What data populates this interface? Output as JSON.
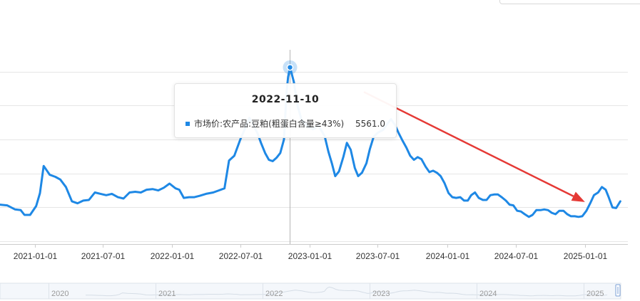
{
  "chart_data": {
    "type": "line",
    "series": [
      {
        "name": "市场价:农产品:豆粕(粗蛋白含量≥43%)",
        "color": "#1e88e5",
        "points": [
          [
            "2020-10-01",
            3540
          ],
          [
            "2020-10-20",
            3530
          ],
          [
            "2020-11-10",
            3470
          ],
          [
            "2020-11-25",
            3460
          ],
          [
            "2020-12-05",
            3390
          ],
          [
            "2020-12-20",
            3390
          ],
          [
            "2021-01-05",
            3520
          ],
          [
            "2021-01-15",
            3710
          ],
          [
            "2021-01-25",
            4110
          ],
          [
            "2021-02-10",
            3980
          ],
          [
            "2021-02-25",
            3950
          ],
          [
            "2021-03-10",
            3910
          ],
          [
            "2021-03-25",
            3800
          ],
          [
            "2021-04-10",
            3590
          ],
          [
            "2021-04-25",
            3560
          ],
          [
            "2021-05-10",
            3600
          ],
          [
            "2021-05-25",
            3610
          ],
          [
            "2021-06-10",
            3720
          ],
          [
            "2021-06-25",
            3700
          ],
          [
            "2021-07-10",
            3680
          ],
          [
            "2021-07-25",
            3700
          ],
          [
            "2021-08-10",
            3650
          ],
          [
            "2021-08-25",
            3630
          ],
          [
            "2021-09-10",
            3720
          ],
          [
            "2021-09-25",
            3730
          ],
          [
            "2021-10-10",
            3720
          ],
          [
            "2021-10-25",
            3760
          ],
          [
            "2021-11-10",
            3770
          ],
          [
            "2021-11-25",
            3750
          ],
          [
            "2021-12-10",
            3790
          ],
          [
            "2021-12-25",
            3850
          ],
          [
            "2022-01-10",
            3780
          ],
          [
            "2022-01-20",
            3760
          ],
          [
            "2022-02-01",
            3640
          ],
          [
            "2022-02-15",
            3650
          ],
          [
            "2022-03-01",
            3650
          ],
          [
            "2022-03-15",
            3670
          ],
          [
            "2022-04-01",
            3700
          ],
          [
            "2022-04-20",
            3720
          ],
          [
            "2022-05-05",
            3750
          ],
          [
            "2022-05-20",
            3780
          ],
          [
            "2022-06-01",
            4190
          ],
          [
            "2022-06-15",
            4260
          ],
          [
            "2022-07-01",
            4500
          ],
          [
            "2022-07-15",
            4680
          ],
          [
            "2022-07-25",
            4820
          ],
          [
            "2022-08-05",
            4700
          ],
          [
            "2022-08-15",
            4600
          ],
          [
            "2022-08-25",
            4450
          ],
          [
            "2022-09-05",
            4300
          ],
          [
            "2022-09-15",
            4200
          ],
          [
            "2022-09-25",
            4180
          ],
          [
            "2022-10-05",
            4230
          ],
          [
            "2022-10-15",
            4300
          ],
          [
            "2022-10-25",
            4500
          ],
          [
            "2022-11-01",
            5200
          ],
          [
            "2022-11-05",
            5420
          ],
          [
            "2022-11-10",
            5561
          ],
          [
            "2022-11-20",
            5350
          ],
          [
            "2022-11-30",
            5000
          ],
          [
            "2022-12-10",
            4800
          ],
          [
            "2022-12-25",
            4700
          ],
          [
            "2023-01-10",
            4650
          ],
          [
            "2023-01-25",
            4700
          ],
          [
            "2023-02-10",
            4550
          ],
          [
            "2023-02-20",
            4320
          ],
          [
            "2023-03-01",
            4150
          ],
          [
            "2023-03-10",
            3960
          ],
          [
            "2023-03-20",
            4030
          ],
          [
            "2023-04-01",
            4250
          ],
          [
            "2023-04-10",
            4450
          ],
          [
            "2023-04-20",
            4350
          ],
          [
            "2023-05-01",
            4080
          ],
          [
            "2023-05-10",
            3960
          ],
          [
            "2023-05-20",
            4010
          ],
          [
            "2023-06-01",
            4150
          ],
          [
            "2023-06-10",
            4360
          ],
          [
            "2023-06-20",
            4540
          ],
          [
            "2023-07-01",
            4600
          ],
          [
            "2023-07-15",
            4640
          ],
          [
            "2023-07-25",
            4720
          ],
          [
            "2023-08-05",
            4800
          ],
          [
            "2023-08-15",
            4720
          ],
          [
            "2023-08-25",
            4600
          ],
          [
            "2023-09-05",
            4480
          ],
          [
            "2023-09-15",
            4380
          ],
          [
            "2023-09-25",
            4260
          ],
          [
            "2023-10-05",
            4200
          ],
          [
            "2023-10-15",
            4240
          ],
          [
            "2023-10-25",
            4210
          ],
          [
            "2023-11-05",
            4100
          ],
          [
            "2023-11-15",
            4020
          ],
          [
            "2023-11-25",
            4040
          ],
          [
            "2023-12-05",
            4010
          ],
          [
            "2023-12-15",
            3960
          ],
          [
            "2023-12-25",
            3860
          ],
          [
            "2024-01-05",
            3710
          ],
          [
            "2024-01-15",
            3650
          ],
          [
            "2024-01-25",
            3640
          ],
          [
            "2024-02-05",
            3650
          ],
          [
            "2024-02-15",
            3600
          ],
          [
            "2024-02-25",
            3600
          ],
          [
            "2024-03-05",
            3680
          ],
          [
            "2024-03-15",
            3720
          ],
          [
            "2024-03-25",
            3640
          ],
          [
            "2024-04-05",
            3610
          ],
          [
            "2024-04-15",
            3610
          ],
          [
            "2024-04-25",
            3680
          ],
          [
            "2024-05-05",
            3690
          ],
          [
            "2024-05-15",
            3690
          ],
          [
            "2024-05-25",
            3650
          ],
          [
            "2024-06-05",
            3600
          ],
          [
            "2024-06-15",
            3540
          ],
          [
            "2024-06-25",
            3530
          ],
          [
            "2024-07-05",
            3450
          ],
          [
            "2024-07-15",
            3440
          ],
          [
            "2024-07-25",
            3400
          ],
          [
            "2024-08-05",
            3360
          ],
          [
            "2024-08-15",
            3390
          ],
          [
            "2024-08-25",
            3460
          ],
          [
            "2024-09-05",
            3460
          ],
          [
            "2024-09-15",
            3470
          ],
          [
            "2024-09-25",
            3460
          ],
          [
            "2024-10-05",
            3420
          ],
          [
            "2024-10-15",
            3400
          ],
          [
            "2024-10-25",
            3450
          ],
          [
            "2024-11-05",
            3450
          ],
          [
            "2024-11-15",
            3400
          ],
          [
            "2024-11-25",
            3370
          ],
          [
            "2024-12-05",
            3370
          ],
          [
            "2024-12-15",
            3360
          ],
          [
            "2024-12-25",
            3370
          ],
          [
            "2025-01-05",
            3450
          ],
          [
            "2025-01-15",
            3560
          ],
          [
            "2025-01-25",
            3680
          ],
          [
            "2025-02-05",
            3720
          ],
          [
            "2025-02-15",
            3800
          ],
          [
            "2025-02-25",
            3760
          ],
          [
            "2025-03-05",
            3650
          ],
          [
            "2025-03-15",
            3500
          ],
          [
            "2025-03-25",
            3490
          ],
          [
            "2025-04-05",
            3590
          ]
        ]
      }
    ],
    "x_ticks": [
      "2021-01-01",
      "2021-07-01",
      "2022-01-01",
      "2022-07-01",
      "2023-01-01",
      "2023-07-01",
      "2024-01-01",
      "2024-07-01",
      "2025-01-01"
    ],
    "y_gridlines": [
      3000,
      3500,
      4000,
      4500,
      5000,
      5500
    ],
    "ylim": [
      2960,
      5820
    ],
    "xlim": [
      "2020-10-01",
      "2025-04-25"
    ],
    "grid": true,
    "tooltip": {
      "date": "2022-11-10",
      "series": "市场价:农产品:豆粕(粗蛋白含量≥43%)",
      "value": "5561.0"
    },
    "annotation": {
      "type": "arrow",
      "color": "#e53935",
      "from": [
        "2023-05-25",
        5200
      ],
      "to": [
        "2025-01-01",
        3580
      ]
    },
    "slider": {
      "labels": [
        "2020",
        "2021",
        "2022",
        "2023",
        "2024",
        "2025"
      ]
    }
  }
}
